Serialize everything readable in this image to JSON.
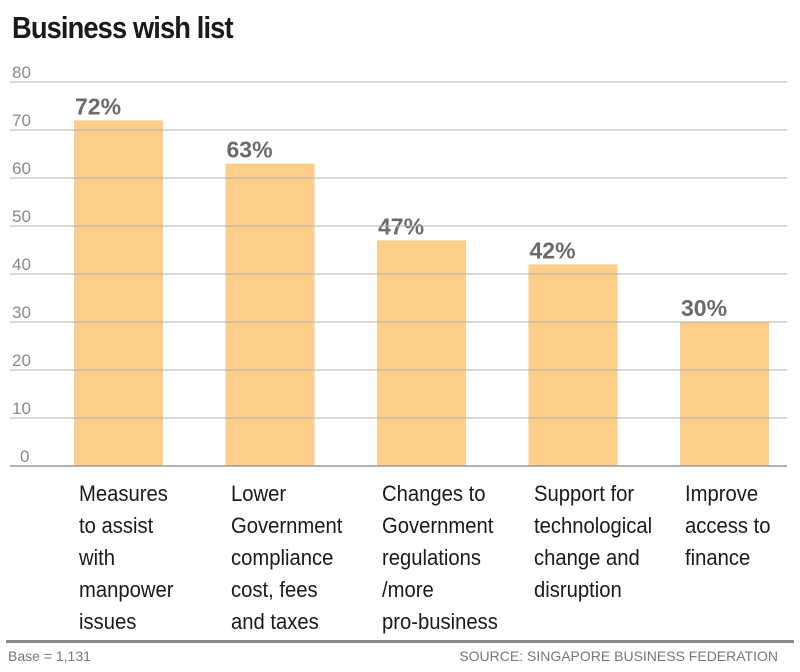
{
  "chart_data": {
    "type": "bar",
    "title": "Business wish list",
    "categories": [
      "Measures\nto assist\nwith\nmanpower\nissues",
      "Lower\nGovernment\ncompliance\ncost, fees\nand taxes",
      "Changes to\nGovernment\nregulations\n/more\npro-business",
      "Support for\ntechnological\nchange and\ndisruption",
      "Improve\naccess to\nfinance"
    ],
    "values": [
      72,
      63,
      47,
      42,
      30
    ],
    "value_labels": [
      "72%",
      "63%",
      "47%",
      "42%",
      "30%"
    ],
    "xlabel": "",
    "ylabel": "",
    "ylim": [
      0,
      80
    ],
    "yticks": [
      0,
      10,
      20,
      30,
      40,
      50,
      60,
      70,
      80
    ],
    "grid": true,
    "legend": "none",
    "bar_color": "#fdcd8a",
    "footnote": "Base = 1,131",
    "source": "SOURCE: SINGAPORE BUSINESS FEDERATION"
  }
}
